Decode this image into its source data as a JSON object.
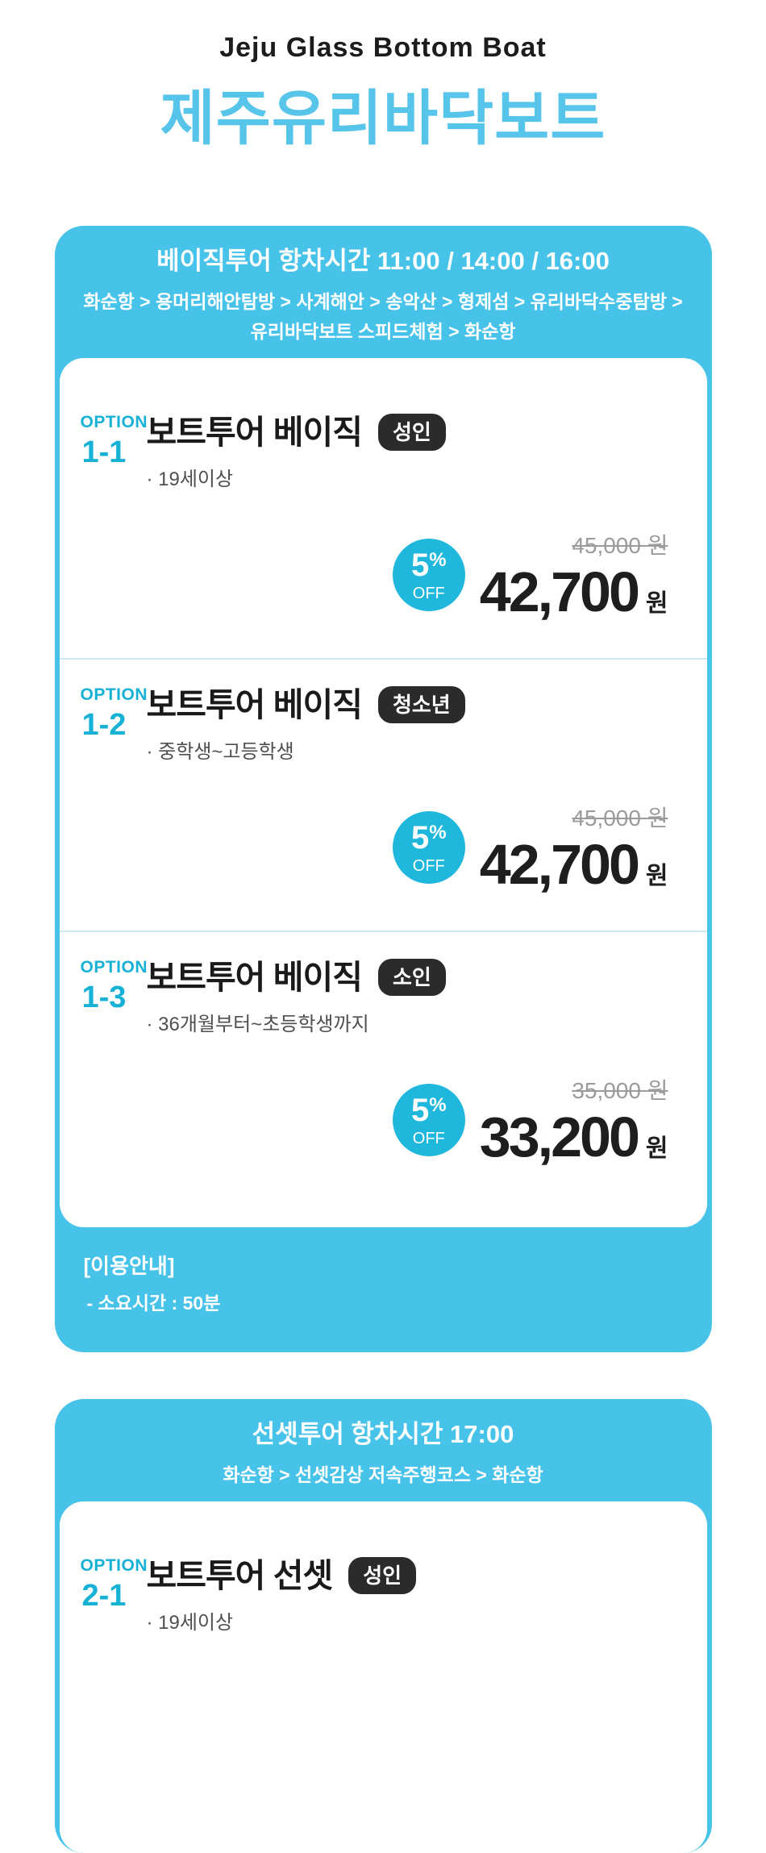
{
  "header": {
    "title_en": "Jeju Glass Bottom Boat",
    "title_ko": "제주유리바닥보트"
  },
  "colors": {
    "primary_cyan": "#47C2E8",
    "deep_cyan": "#1FB7DC",
    "option_cyan": "#17B1D5",
    "badge_dark": "#2B2B2B",
    "price_dark": "#1E1E1E",
    "old_price_gray": "#9B9B9B",
    "divider_light_cyan": "#CDEAF3"
  },
  "sections": [
    {
      "schedule_title": "베이직투어 항차시간 11:00 / 14:00 / 16:00",
      "route_lines": [
        "화순항 > 용머리해안탐방 > 사계해안 > 송악산 > 형제섬 > 유리바닥수중탐방 >",
        "유리바닥보트 스피드체험 > 화순항"
      ],
      "options": [
        {
          "option_label": "OPTION",
          "option_no": "1-1",
          "title": "보트투어 베이직",
          "badge": "성인",
          "desc": "· 19세이상",
          "discount_pct": "5",
          "discount_sign": "%",
          "discount_off": "OFF",
          "original_price": "45,000",
          "original_currency": "원",
          "price": "42,700",
          "currency": "원"
        },
        {
          "option_label": "OPTION",
          "option_no": "1-2",
          "title": "보트투어 베이직",
          "badge": "청소년",
          "desc": "· 중학생~고등학생",
          "discount_pct": "5",
          "discount_sign": "%",
          "discount_off": "OFF",
          "original_price": "45,000",
          "original_currency": "원",
          "price": "42,700",
          "currency": "원"
        },
        {
          "option_label": "OPTION",
          "option_no": "1-3",
          "title": "보트투어 베이직",
          "badge": "소인",
          "desc": "· 36개월부터~초등학생까지",
          "discount_pct": "5",
          "discount_sign": "%",
          "discount_off": "OFF",
          "original_price": "35,000",
          "original_currency": "원",
          "price": "33,200",
          "currency": "원"
        }
      ],
      "notice": {
        "title": "[이용안내]",
        "items": [
          "- 소요시간 : 50분"
        ]
      }
    },
    {
      "schedule_title": "선셋투어 항차시간 17:00",
      "route_lines": [
        "화순항 > 선셋감상 저속주행코스 > 화순항"
      ],
      "options": [
        {
          "option_label": "OPTION",
          "option_no": "2-1",
          "title": "보트투어 선셋",
          "badge": "성인",
          "desc": "· 19세이상"
        }
      ]
    }
  ]
}
